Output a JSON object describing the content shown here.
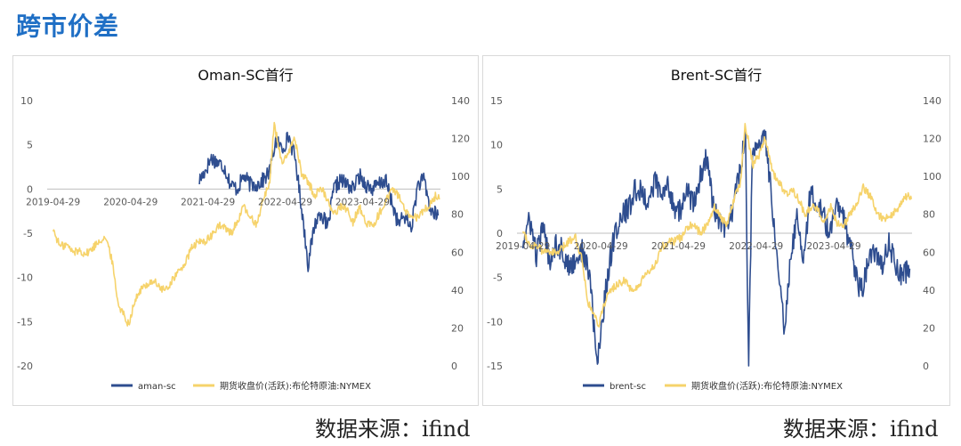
{
  "page": {
    "title": "跨市价差"
  },
  "source_label": "数据来源：ifind",
  "colors": {
    "spread": "#2e4d8f",
    "crude": "#f6d36b",
    "title": "#1f6fc5",
    "grid": "#d0d0d0"
  },
  "chart_data": [
    {
      "type": "line",
      "title": "Oman-SC首行",
      "x_ticks": [
        "2019-04-29",
        "2020-04-29",
        "2021-04-29",
        "2022-04-29",
        "2023-04-29"
      ],
      "x_range": [
        "2019-04-01",
        "2024-05-01"
      ],
      "ylim_left": [
        -20,
        10
      ],
      "ylim_right": [
        0,
        140
      ],
      "yticks_left": [
        10,
        5,
        0,
        -5,
        -10,
        -15,
        -20
      ],
      "yticks_right": [
        140,
        120,
        100,
        80,
        60,
        40,
        20,
        0
      ],
      "legend_position": "bottom",
      "series": [
        {
          "name": "aman-sc",
          "axis": "left",
          "color": "#2e4d8f",
          "points": [
            [
              "2021-03-20",
              1.0
            ],
            [
              "2021-04-15",
              2.0
            ],
            [
              "2021-05-15",
              3.5
            ],
            [
              "2021-06-15",
              3.0
            ],
            [
              "2021-07-15",
              2.5
            ],
            [
              "2021-08-15",
              0.5
            ],
            [
              "2021-09-15",
              0.0
            ],
            [
              "2021-10-15",
              1.5
            ],
            [
              "2021-11-15",
              0.5
            ],
            [
              "2021-12-15",
              0.5
            ],
            [
              "2022-01-15",
              1.0
            ],
            [
              "2022-02-15",
              2.0
            ],
            [
              "2022-03-15",
              5.5
            ],
            [
              "2022-04-15",
              4.5
            ],
            [
              "2022-05-15",
              6.0
            ],
            [
              "2022-06-15",
              3.5
            ],
            [
              "2022-07-15",
              -2.0
            ],
            [
              "2022-08-15",
              -8.5
            ],
            [
              "2022-09-15",
              -4.0
            ],
            [
              "2022-10-15",
              -2.5
            ],
            [
              "2022-11-15",
              -4.5
            ],
            [
              "2022-12-15",
              0.0
            ],
            [
              "2023-01-15",
              1.0
            ],
            [
              "2023-02-15",
              0.5
            ],
            [
              "2023-03-15",
              0.0
            ],
            [
              "2023-04-15",
              1.5
            ],
            [
              "2023-05-15",
              0.5
            ],
            [
              "2023-06-15",
              0.0
            ],
            [
              "2023-07-15",
              0.5
            ],
            [
              "2023-08-15",
              1.0
            ],
            [
              "2023-09-15",
              -1.5
            ],
            [
              "2023-10-15",
              -4.0
            ],
            [
              "2023-11-15",
              -3.0
            ],
            [
              "2023-12-15",
              -4.5
            ],
            [
              "2024-01-15",
              0.5
            ],
            [
              "2024-02-15",
              1.0
            ],
            [
              "2024-03-15",
              -2.5
            ],
            [
              "2024-04-20",
              -3.0
            ]
          ]
        },
        {
          "name": "期货收盘价(活跃):布伦特原油:NYMEX",
          "axis": "right",
          "color": "#f6d36b",
          "points": [
            [
              "2019-04-29",
              72
            ],
            [
              "2019-06-01",
              63
            ],
            [
              "2019-07-01",
              64
            ],
            [
              "2019-08-01",
              60
            ],
            [
              "2019-09-01",
              61
            ],
            [
              "2019-10-01",
              59
            ],
            [
              "2019-11-01",
              62
            ],
            [
              "2019-12-01",
              66
            ],
            [
              "2020-01-01",
              68
            ],
            [
              "2020-02-01",
              56
            ],
            [
              "2020-03-01",
              33
            ],
            [
              "2020-04-20",
              22
            ],
            [
              "2020-05-15",
              33
            ],
            [
              "2020-06-15",
              40
            ],
            [
              "2020-07-15",
              43
            ],
            [
              "2020-08-15",
              45
            ],
            [
              "2020-09-15",
              41
            ],
            [
              "2020-10-15",
              40
            ],
            [
              "2020-11-15",
              46
            ],
            [
              "2020-12-15",
              50
            ],
            [
              "2021-01-15",
              55
            ],
            [
              "2021-02-15",
              63
            ],
            [
              "2021-03-15",
              65
            ],
            [
              "2021-04-15",
              66
            ],
            [
              "2021-05-15",
              68
            ],
            [
              "2021-06-15",
              74
            ],
            [
              "2021-07-15",
              73
            ],
            [
              "2021-08-15",
              70
            ],
            [
              "2021-09-15",
              76
            ],
            [
              "2021-10-15",
              84
            ],
            [
              "2021-11-15",
              78
            ],
            [
              "2021-12-15",
              75
            ],
            [
              "2022-01-15",
              88
            ],
            [
              "2022-02-15",
              97
            ],
            [
              "2022-03-08",
              128
            ],
            [
              "2022-04-15",
              106
            ],
            [
              "2022-05-15",
              112
            ],
            [
              "2022-06-10",
              121
            ],
            [
              "2022-07-15",
              102
            ],
            [
              "2022-08-15",
              97
            ],
            [
              "2022-09-15",
              90
            ],
            [
              "2022-10-15",
              94
            ],
            [
              "2022-11-15",
              88
            ],
            [
              "2022-12-15",
              80
            ],
            [
              "2023-01-15",
              84
            ],
            [
              "2023-02-15",
              83
            ],
            [
              "2023-03-15",
              76
            ],
            [
              "2023-04-15",
              84
            ],
            [
              "2023-05-15",
              75
            ],
            [
              "2023-06-15",
              74
            ],
            [
              "2023-07-15",
              80
            ],
            [
              "2023-08-15",
              86
            ],
            [
              "2023-09-15",
              94
            ],
            [
              "2023-10-15",
              90
            ],
            [
              "2023-11-15",
              82
            ],
            [
              "2023-12-15",
              77
            ],
            [
              "2024-01-15",
              79
            ],
            [
              "2024-02-15",
              82
            ],
            [
              "2024-03-15",
              86
            ],
            [
              "2024-04-10",
              90
            ],
            [
              "2024-04-28",
              88
            ]
          ]
        }
      ]
    },
    {
      "type": "line",
      "title": "Brent-SC首行",
      "x_ticks": [
        "2019-04-29",
        "2020-04-29",
        "2021-04-29",
        "2022-04-29",
        "2023-04-29"
      ],
      "x_range": [
        "2019-04-01",
        "2024-05-01"
      ],
      "ylim_left": [
        -15,
        15
      ],
      "ylim_right": [
        0,
        140
      ],
      "yticks_left": [
        15,
        10,
        5,
        0,
        -5,
        -10,
        -15
      ],
      "yticks_right": [
        140,
        120,
        100,
        80,
        60,
        40,
        20,
        0
      ],
      "legend_position": "bottom",
      "series": [
        {
          "name": "brent-sc",
          "axis": "left",
          "color": "#2e4d8f",
          "points": [
            [
              "2019-04-29",
              -1.0
            ],
            [
              "2019-06-01",
              1.5
            ],
            [
              "2019-07-01",
              -2.5
            ],
            [
              "2019-08-01",
              0.5
            ],
            [
              "2019-09-01",
              -3.0
            ],
            [
              "2019-10-01",
              -1.0
            ],
            [
              "2019-11-01",
              -2.0
            ],
            [
              "2019-12-01",
              -4.0
            ],
            [
              "2020-01-01",
              -3.0
            ],
            [
              "2020-02-01",
              -2.0
            ],
            [
              "2020-03-10",
              -5.0
            ],
            [
              "2020-04-10",
              -15.0
            ],
            [
              "2020-05-10",
              -9.0
            ],
            [
              "2020-06-10",
              -3.0
            ],
            [
              "2020-07-10",
              0.5
            ],
            [
              "2020-08-10",
              2.0
            ],
            [
              "2020-09-10",
              3.0
            ],
            [
              "2020-10-10",
              5.0
            ],
            [
              "2020-11-10",
              4.5
            ],
            [
              "2020-12-10",
              3.5
            ],
            [
              "2021-01-10",
              6.0
            ],
            [
              "2021-02-10",
              4.0
            ],
            [
              "2021-03-10",
              5.5
            ],
            [
              "2021-04-10",
              3.0
            ],
            [
              "2021-05-10",
              2.5
            ],
            [
              "2021-06-10",
              5.0
            ],
            [
              "2021-07-10",
              3.0
            ],
            [
              "2021-08-10",
              6.5
            ],
            [
              "2021-09-10",
              8.5
            ],
            [
              "2021-10-10",
              3.0
            ],
            [
              "2021-11-10",
              1.0
            ],
            [
              "2021-12-10",
              0.0
            ],
            [
              "2022-01-10",
              3.0
            ],
            [
              "2022-02-10",
              7.0
            ],
            [
              "2022-03-10",
              11.0
            ],
            [
              "2022-03-25",
              -15.0
            ],
            [
              "2022-04-10",
              8.0
            ],
            [
              "2022-05-10",
              10.0
            ],
            [
              "2022-06-10",
              11.5
            ],
            [
              "2022-07-10",
              4.0
            ],
            [
              "2022-08-10",
              -3.0
            ],
            [
              "2022-09-10",
              -11.0
            ],
            [
              "2022-10-10",
              -2.0
            ],
            [
              "2022-11-10",
              2.0
            ],
            [
              "2022-12-10",
              -3.0
            ],
            [
              "2023-01-10",
              5.0
            ],
            [
              "2023-02-10",
              3.0
            ],
            [
              "2023-03-10",
              2.0
            ],
            [
              "2023-04-10",
              0.0
            ],
            [
              "2023-05-10",
              3.0
            ],
            [
              "2023-06-10",
              2.0
            ],
            [
              "2023-07-10",
              -1.0
            ],
            [
              "2023-08-10",
              -5.0
            ],
            [
              "2023-09-10",
              -6.5
            ],
            [
              "2023-10-10",
              -3.0
            ],
            [
              "2023-11-10",
              -2.0
            ],
            [
              "2023-12-10",
              -4.0
            ],
            [
              "2024-01-10",
              -1.0
            ],
            [
              "2024-02-10",
              -3.0
            ],
            [
              "2024-03-10",
              -5.0
            ],
            [
              "2024-04-20",
              -4.0
            ]
          ]
        },
        {
          "name": "期货收盘价(活跃):布伦特原油:NYMEX",
          "axis": "right",
          "color": "#f6d36b",
          "points": [
            [
              "2019-04-29",
              72
            ],
            [
              "2019-06-01",
              63
            ],
            [
              "2019-07-01",
              64
            ],
            [
              "2019-08-01",
              60
            ],
            [
              "2019-09-01",
              61
            ],
            [
              "2019-10-01",
              59
            ],
            [
              "2019-11-01",
              62
            ],
            [
              "2019-12-01",
              66
            ],
            [
              "2020-01-01",
              68
            ],
            [
              "2020-02-01",
              56
            ],
            [
              "2020-03-01",
              33
            ],
            [
              "2020-04-20",
              22
            ],
            [
              "2020-05-15",
              33
            ],
            [
              "2020-06-15",
              40
            ],
            [
              "2020-07-15",
              43
            ],
            [
              "2020-08-15",
              45
            ],
            [
              "2020-09-15",
              41
            ],
            [
              "2020-10-15",
              40
            ],
            [
              "2020-11-15",
              46
            ],
            [
              "2020-12-15",
              50
            ],
            [
              "2021-01-15",
              55
            ],
            [
              "2021-02-15",
              63
            ],
            [
              "2021-03-15",
              65
            ],
            [
              "2021-04-15",
              66
            ],
            [
              "2021-05-15",
              68
            ],
            [
              "2021-06-15",
              74
            ],
            [
              "2021-07-15",
              73
            ],
            [
              "2021-08-15",
              70
            ],
            [
              "2021-09-15",
              76
            ],
            [
              "2021-10-15",
              84
            ],
            [
              "2021-11-15",
              78
            ],
            [
              "2021-12-15",
              75
            ],
            [
              "2022-01-15",
              88
            ],
            [
              "2022-02-15",
              97
            ],
            [
              "2022-03-08",
              128
            ],
            [
              "2022-04-15",
              106
            ],
            [
              "2022-05-15",
              112
            ],
            [
              "2022-06-10",
              121
            ],
            [
              "2022-07-15",
              102
            ],
            [
              "2022-08-15",
              97
            ],
            [
              "2022-09-15",
              90
            ],
            [
              "2022-10-15",
              94
            ],
            [
              "2022-11-15",
              88
            ],
            [
              "2022-12-15",
              80
            ],
            [
              "2023-01-15",
              84
            ],
            [
              "2023-02-15",
              83
            ],
            [
              "2023-03-15",
              76
            ],
            [
              "2023-04-15",
              84
            ],
            [
              "2023-05-15",
              75
            ],
            [
              "2023-06-15",
              74
            ],
            [
              "2023-07-15",
              80
            ],
            [
              "2023-08-15",
              86
            ],
            [
              "2023-09-15",
              94
            ],
            [
              "2023-10-15",
              90
            ],
            [
              "2023-11-15",
              82
            ],
            [
              "2023-12-15",
              77
            ],
            [
              "2024-01-15",
              79
            ],
            [
              "2024-02-15",
              82
            ],
            [
              "2024-03-15",
              86
            ],
            [
              "2024-04-10",
              90
            ],
            [
              "2024-04-28",
              88
            ]
          ]
        }
      ]
    }
  ]
}
